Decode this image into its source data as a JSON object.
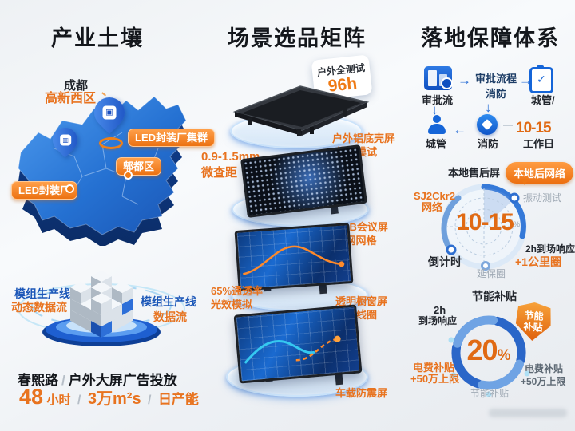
{
  "colors": {
    "accent_orange": "#e8731f",
    "pill_orange": "#f08018",
    "primary_blue": "#1e63c8",
    "navy_text": "#1d3d66",
    "map_blue": "#2f7fd6"
  },
  "left": {
    "title": "产业土壤",
    "map": {
      "city": "成都",
      "district": "高新西区",
      "pill_cluster": "LED封装厂集群",
      "pill_pidu": "郫都区",
      "pill_factory": "LED封装厂"
    },
    "cube": {
      "left_label_1": "模组生产线",
      "left_label_2": "动态数据流",
      "right_label_1": "模组生产线",
      "right_label_2": "数据流"
    },
    "stats": {
      "line1_a": "春熙路",
      "line1_b": "户外大屏广告投放",
      "num_hours": "48",
      "unit_hours": "小时",
      "area": "3万m²s",
      "daily": "日产能",
      "sep": "/"
    }
  },
  "middle": {
    "title": "场景选品矩阵",
    "badge": {
      "line1": "户外全测试",
      "line2": "96h"
    },
    "labels": {
      "p1_right_1": "户外铝底壳屏",
      "p1_right_2": "盐雾模试",
      "p1_left_1": "0.9-1.5mm",
      "p1_left_2": "微查距",
      "p2_right_1": "COB会议屏",
      "p2_right_2": "网网格",
      "p3_left_1": "65%通透率",
      "p3_left_2": "光效模拟",
      "p3_right_1": "透明橱窗屏",
      "p3_right_2": "试线圈",
      "p4_label": "车载防震屏"
    }
  },
  "right": {
    "title": "落地保障体系",
    "flow": {
      "node_approval": "审批流",
      "mid_line1": "审批流程",
      "mid_line2": "消防",
      "node_clipboard": "城管/",
      "node_person": "城管",
      "node_fire": "消防",
      "days_num": "10-15",
      "days_unit": "工作日"
    },
    "radar": {
      "top_label": "本地售后屏",
      "badge": "本地后网络",
      "left_line1": "SJ2Ckr2",
      "left_line2": "网络",
      "right_top": "振动测试",
      "center": "10-15",
      "center_suffix": "%",
      "right_mid_1": "2h到场响应",
      "right_mid_2": "+1公里圈",
      "bottom_left": "倒计时",
      "bottom": "延保圈"
    },
    "donut": {
      "title": "节能补贴",
      "shield_line1": "节能",
      "shield_line2": "补贴",
      "center_num": "20",
      "center_pct": "%",
      "left_top_1": "2h",
      "left_top_2": "到场响应",
      "left_bot_1": "电费补贴",
      "left_bot_2": "+50万上限",
      "right_1": "电费补贴",
      "right_2": "+50万上限",
      "bottom": "节能补贴"
    }
  }
}
